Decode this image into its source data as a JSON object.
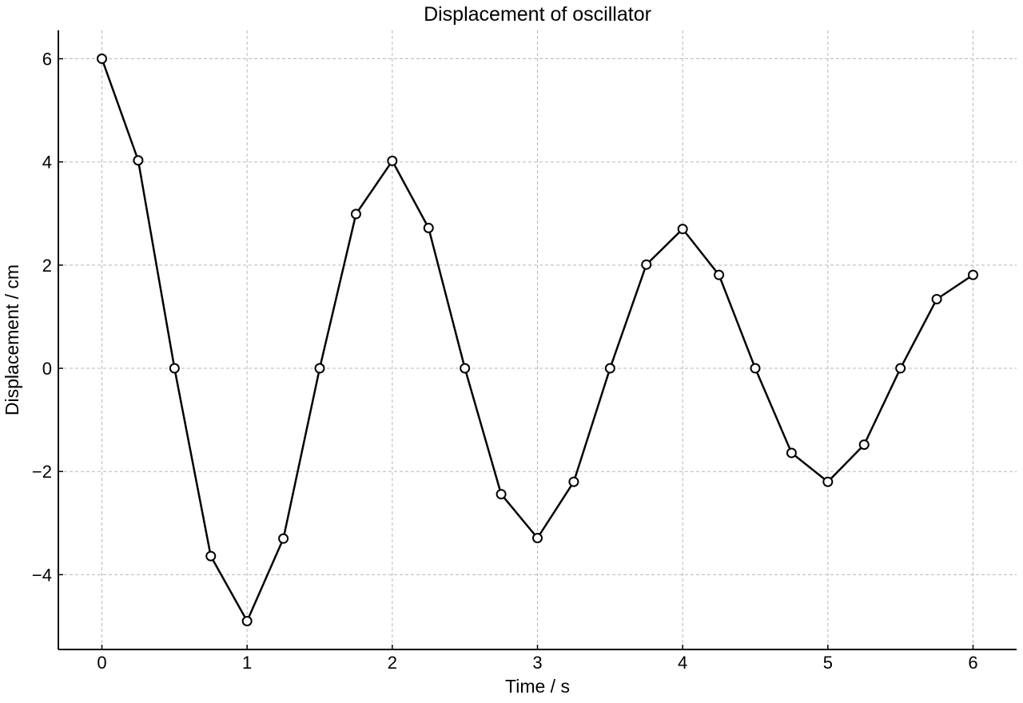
{
  "chart_data": {
    "type": "line",
    "title": "Displacement of oscillator",
    "xlabel": "Time / s",
    "ylabel": "Displacement / cm",
    "xlim": [
      -0.3,
      6.3
    ],
    "ylim": [
      -5.45,
      6.55
    ],
    "xticks": [
      0,
      1,
      2,
      3,
      4,
      5,
      6
    ],
    "yticks": [
      -4,
      -2,
      0,
      2,
      4,
      6
    ],
    "xtick_labels": [
      "0",
      "1",
      "2",
      "3",
      "4",
      "5",
      "6"
    ],
    "ytick_labels": [
      "−4",
      "−2",
      "0",
      "2",
      "4",
      "6"
    ],
    "grid": true,
    "legend": "none",
    "colors": {
      "line": "#000000",
      "marker_fill": "#ffffff",
      "marker_edge": "#000000",
      "grid": "#b8b8b8"
    },
    "series": [
      {
        "x": [
          0,
          0.25,
          0.5,
          0.75,
          1,
          1.25,
          1.5,
          1.75,
          2,
          2.25,
          2.5,
          2.75,
          3,
          3.25,
          3.5,
          3.75,
          4,
          4.25,
          4.5,
          4.75,
          5,
          5.25,
          5.5,
          5.75,
          6
        ],
        "values": [
          6,
          4.03,
          0,
          -3.64,
          -4.9,
          -3.3,
          0,
          2.99,
          4.02,
          2.72,
          0,
          -2.44,
          -3.29,
          -2.2,
          0,
          2.01,
          2.7,
          1.81,
          0,
          -1.64,
          -2.2,
          -1.48,
          0,
          1.34,
          1.81
        ]
      }
    ]
  }
}
